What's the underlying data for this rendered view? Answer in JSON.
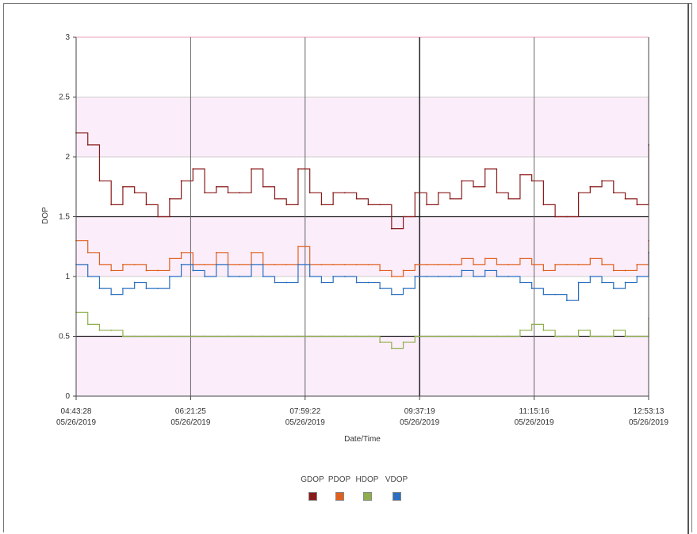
{
  "chart_data": {
    "type": "line",
    "xlabel": "Date/Time",
    "ylabel": "DOP",
    "ylim": [
      0,
      3
    ],
    "yticks": [
      "0",
      "0.5",
      "1",
      "1.5",
      "2",
      "2.5",
      "3"
    ],
    "xticks": [
      {
        "time": "04:43:28",
        "date": "05/26/2019"
      },
      {
        "time": "06:21:25",
        "date": "05/26/2019"
      },
      {
        "time": "07:59:22",
        "date": "05/26/2019"
      },
      {
        "time": "09:37:19",
        "date": "05/26/2019"
      },
      {
        "time": "11:15:16",
        "date": "05/26/2019"
      },
      {
        "time": "12:53:13",
        "date": "05/26/2019"
      }
    ],
    "x": [
      "04:43:28",
      "04:50",
      "05:00",
      "05:10",
      "05:20",
      "05:30",
      "05:40",
      "05:50",
      "06:00",
      "06:10",
      "06:21:25",
      "06:30",
      "06:40",
      "06:50",
      "07:00",
      "07:10",
      "07:20",
      "07:30",
      "07:40",
      "07:50",
      "07:59:22",
      "08:10",
      "08:20",
      "08:30",
      "08:40",
      "08:50",
      "09:00",
      "09:10",
      "09:20",
      "09:37:19",
      "09:45",
      "09:55",
      "10:05",
      "10:15",
      "10:25",
      "10:35",
      "10:45",
      "10:55",
      "11:05",
      "11:15:16",
      "11:25",
      "11:35",
      "11:45",
      "11:55",
      "12:05",
      "12:15",
      "12:25",
      "12:35",
      "12:45",
      "12:53:13"
    ],
    "series": [
      {
        "name": "GDOP",
        "color": "#8b1a1a",
        "values": [
          2.2,
          2.1,
          1.8,
          1.6,
          1.75,
          1.7,
          1.6,
          1.5,
          1.65,
          1.8,
          1.9,
          1.7,
          1.75,
          1.7,
          1.7,
          1.9,
          1.75,
          1.65,
          1.6,
          1.9,
          1.7,
          1.6,
          1.7,
          1.7,
          1.65,
          1.6,
          1.6,
          1.4,
          1.5,
          1.7,
          1.6,
          1.7,
          1.65,
          1.8,
          1.75,
          1.9,
          1.7,
          1.65,
          1.85,
          1.8,
          1.6,
          1.5,
          1.5,
          1.7,
          1.75,
          1.8,
          1.7,
          1.65,
          1.6,
          2.1
        ]
      },
      {
        "name": "PDOP",
        "color": "#e06020",
        "values": [
          1.3,
          1.2,
          1.1,
          1.05,
          1.1,
          1.1,
          1.05,
          1.05,
          1.15,
          1.2,
          1.1,
          1.1,
          1.2,
          1.1,
          1.1,
          1.2,
          1.1,
          1.1,
          1.1,
          1.25,
          1.1,
          1.1,
          1.1,
          1.1,
          1.1,
          1.1,
          1.05,
          1.0,
          1.05,
          1.1,
          1.1,
          1.1,
          1.1,
          1.15,
          1.1,
          1.15,
          1.1,
          1.1,
          1.15,
          1.1,
          1.05,
          1.1,
          1.1,
          1.1,
          1.15,
          1.1,
          1.05,
          1.05,
          1.1,
          1.3
        ]
      },
      {
        "name": "HDOP",
        "color": "#8fae4c",
        "values": [
          0.7,
          0.6,
          0.55,
          0.55,
          0.5,
          0.5,
          0.5,
          0.5,
          0.5,
          0.5,
          0.5,
          0.5,
          0.5,
          0.5,
          0.5,
          0.5,
          0.5,
          0.5,
          0.5,
          0.5,
          0.5,
          0.5,
          0.5,
          0.5,
          0.5,
          0.5,
          0.45,
          0.4,
          0.45,
          0.5,
          0.5,
          0.5,
          0.5,
          0.5,
          0.5,
          0.5,
          0.5,
          0.5,
          0.55,
          0.6,
          0.55,
          0.5,
          0.5,
          0.55,
          0.5,
          0.5,
          0.55,
          0.5,
          0.5,
          0.65
        ]
      },
      {
        "name": "VDOP",
        "color": "#2a6fc0",
        "values": [
          1.1,
          1.0,
          0.9,
          0.85,
          0.9,
          0.95,
          0.9,
          0.9,
          1.0,
          1.1,
          1.05,
          1.0,
          1.1,
          1.0,
          1.0,
          1.1,
          1.0,
          0.95,
          0.95,
          1.1,
          1.0,
          0.95,
          1.0,
          1.0,
          0.95,
          0.95,
          0.9,
          0.85,
          0.9,
          1.0,
          1.0,
          1.0,
          1.0,
          1.05,
          1.0,
          1.05,
          1.0,
          1.0,
          0.95,
          0.9,
          0.85,
          0.85,
          0.8,
          0.95,
          1.0,
          0.95,
          0.9,
          0.95,
          1.0,
          1.2
        ]
      }
    ],
    "grid": true,
    "legend_position": "bottom-center"
  }
}
